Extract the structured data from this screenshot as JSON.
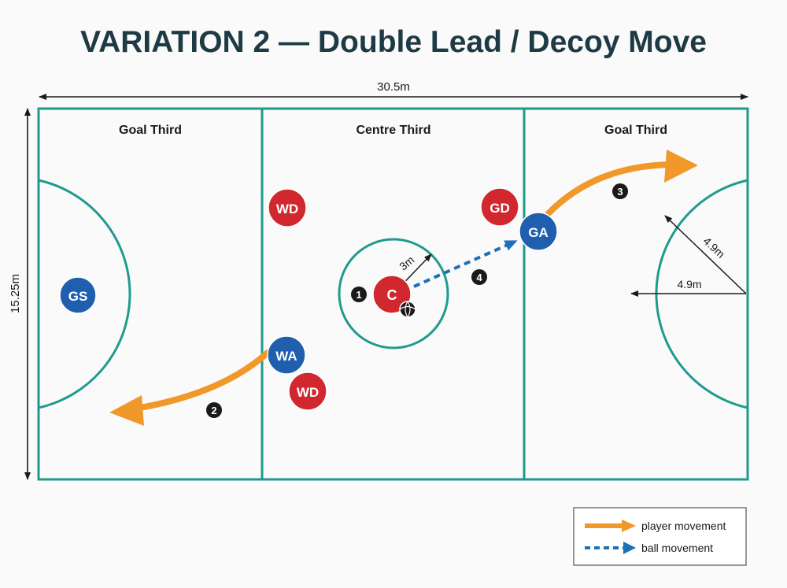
{
  "title": "VARIATION 2 — Double Lead / Decoy Move",
  "court": {
    "width_label": "30.5m",
    "height_label": "15.25m",
    "thirds": [
      "Goal Third",
      "Centre Third",
      "Goal Third"
    ],
    "centre_circle_label": "3m",
    "goal_circle_radius_labels": [
      "4.9m",
      "4.9m"
    ]
  },
  "players": [
    {
      "id": "gs",
      "label": "GS",
      "team": "blue"
    },
    {
      "id": "wd-top",
      "label": "WD",
      "team": "red"
    },
    {
      "id": "gd",
      "label": "GD",
      "team": "red"
    },
    {
      "id": "ga",
      "label": "GA",
      "team": "blue"
    },
    {
      "id": "c",
      "label": "C",
      "team": "red"
    },
    {
      "id": "wa",
      "label": "WA",
      "team": "blue"
    },
    {
      "id": "wd-bottom",
      "label": "WD",
      "team": "red"
    }
  ],
  "steps": [
    "1",
    "2",
    "3",
    "4"
  ],
  "legend": {
    "player_movement": "player movement",
    "ball_movement": "ball movement"
  },
  "colors": {
    "court_line": "#1f9b8e",
    "blue_team": "#1f5fae",
    "red_team": "#d0282e",
    "player_movement": "#f0982a",
    "ball_movement": "#1f6fb8",
    "title": "#1e3a44"
  },
  "icons": {
    "ball": "netball-icon"
  }
}
